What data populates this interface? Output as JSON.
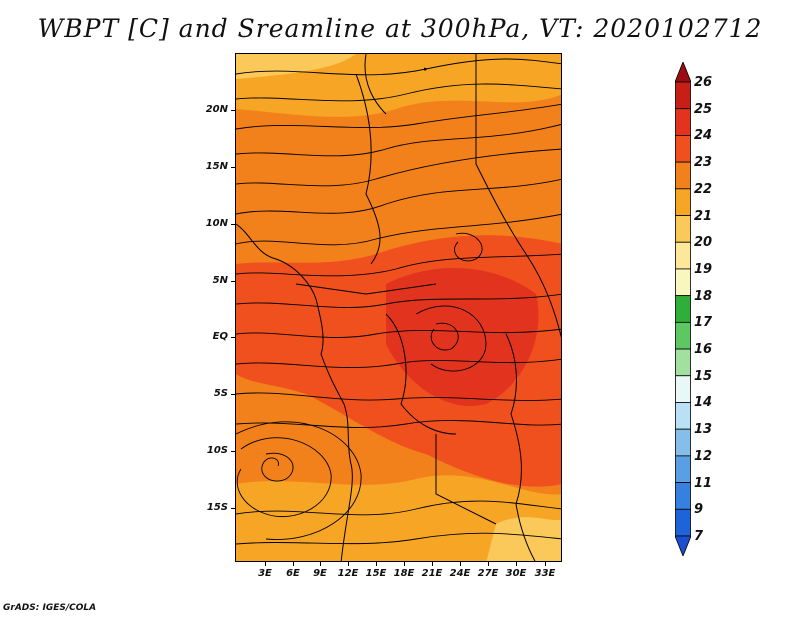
{
  "title": "WBPT [C] and Sreamline at 300hPa, VT: 2020102712",
  "credit": "GrADS: IGES/COLA",
  "map": {
    "lat_labels": [
      "20N",
      "15N",
      "10N",
      "5N",
      "EQ",
      "5S",
      "10S",
      "15S"
    ],
    "lon_labels": [
      "3E",
      "6E",
      "9E",
      "12E",
      "15E",
      "18E",
      "21E",
      "24E",
      "27E",
      "30E",
      "33E"
    ]
  },
  "colorbar": {
    "labels": [
      "26",
      "25",
      "24",
      "23",
      "22",
      "21",
      "20",
      "19",
      "18",
      "17",
      "16",
      "15",
      "14",
      "13",
      "12",
      "11",
      "9",
      "7"
    ],
    "colors": [
      "#9b0d13",
      "#c61f17",
      "#e2331e",
      "#f0501d",
      "#f2801b",
      "#f7a525",
      "#fbc85a",
      "#fde89a",
      "#f9f7bf",
      "#2fae3a",
      "#5dc763",
      "#a3df9f",
      "#e8f8f7",
      "#b9e0f5",
      "#86bde9",
      "#5a9ee4",
      "#3680e0",
      "#1d64d8",
      "#1a4fd0"
    ]
  }
}
